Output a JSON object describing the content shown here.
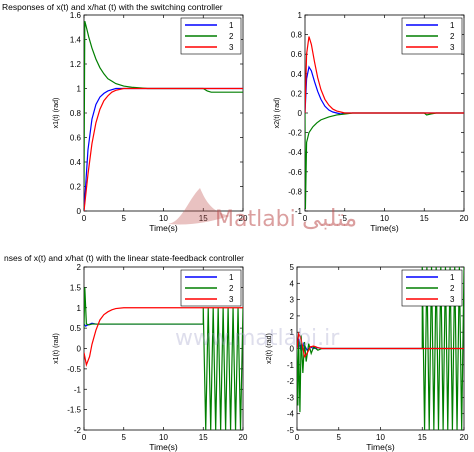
{
  "titles": {
    "top": "Responses of x(t) and x/hat (t) with the switching controller",
    "bottom": "nses of x(t) and x/hat (t) with the linear state-feedback controller"
  },
  "watermark": {
    "brand_latin": "Matlabi",
    "brand_arabic": "متلبی",
    "url": "www.matlabi.ir",
    "color": "#c0504d"
  },
  "colors": {
    "series1": "#0000ff",
    "series2": "#007f00",
    "series3": "#ff0000"
  },
  "chart_data": [
    {
      "type": "line",
      "xlabel": "Time(s)",
      "ylabel": "x1(t) (rad)",
      "xlim": [
        0,
        20
      ],
      "ylim": [
        0,
        1.6
      ],
      "xticks": [
        0,
        5,
        10,
        15,
        20
      ],
      "yticks": [
        0,
        0.2,
        0.4,
        0.6,
        0.8,
        1,
        1.2,
        1.4,
        1.6
      ],
      "legend": "top-right",
      "series": [
        {
          "name": "1",
          "color": "#0000ff",
          "x": [
            0,
            0.5,
            1,
            1.5,
            2,
            2.5,
            3,
            3.5,
            4,
            5,
            6,
            8,
            20
          ],
          "y": [
            0,
            0.5,
            0.75,
            0.87,
            0.93,
            0.96,
            0.98,
            0.99,
            1.0,
            1.0,
            1.0,
            1.0,
            1.0
          ]
        },
        {
          "name": "2",
          "color": "#007f00",
          "x": [
            0,
            0.1,
            0.3,
            0.6,
            1,
            1.5,
            2,
            2.5,
            3,
            3.5,
            4,
            5,
            6,
            8,
            10,
            12,
            14,
            15,
            15.5,
            16,
            20
          ],
          "y": [
            0.2,
            1.55,
            1.5,
            1.42,
            1.33,
            1.24,
            1.17,
            1.12,
            1.08,
            1.06,
            1.04,
            1.02,
            1.01,
            1.0,
            1.0,
            1.0,
            1.0,
            1.0,
            0.98,
            0.97,
            0.97
          ]
        },
        {
          "name": "3",
          "color": "#ff0000",
          "x": [
            0,
            0.5,
            1,
            1.5,
            2,
            2.5,
            3,
            3.5,
            4,
            5,
            6,
            8,
            20
          ],
          "y": [
            0,
            0.3,
            0.55,
            0.72,
            0.83,
            0.9,
            0.94,
            0.97,
            0.985,
            1.0,
            1.0,
            1.0,
            1.0
          ]
        }
      ]
    },
    {
      "type": "line",
      "xlabel": "Time(s)",
      "ylabel": "x2(t) (rad)",
      "xlim": [
        0,
        20
      ],
      "ylim": [
        -1,
        1
      ],
      "xticks": [
        0,
        5,
        10,
        15,
        20
      ],
      "yticks": [
        -1,
        -0.8,
        -0.6,
        -0.4,
        -0.2,
        0,
        0.2,
        0.4,
        0.6,
        0.8,
        1
      ],
      "legend": "top-right",
      "series": [
        {
          "name": "1",
          "color": "#0000ff",
          "x": [
            0,
            0.2,
            0.5,
            0.8,
            1.2,
            1.6,
            2,
            2.5,
            3,
            3.5,
            4,
            4.5,
            5,
            6,
            20
          ],
          "y": [
            0,
            0.35,
            0.47,
            0.43,
            0.32,
            0.22,
            0.14,
            0.07,
            0.03,
            0.01,
            0,
            -0.01,
            0,
            0,
            0
          ]
        },
        {
          "name": "2",
          "color": "#007f00",
          "x": [
            0,
            0.05,
            0.2,
            0.5,
            1,
            1.5,
            2,
            3,
            4,
            5,
            6,
            8,
            15,
            15.3,
            15.8,
            16.5,
            20
          ],
          "y": [
            0,
            -0.98,
            -0.3,
            -0.2,
            -0.14,
            -0.1,
            -0.07,
            -0.04,
            -0.02,
            -0.01,
            0,
            0,
            0,
            -0.02,
            -0.01,
            0,
            0
          ]
        },
        {
          "name": "3",
          "color": "#ff0000",
          "x": [
            0,
            0.2,
            0.5,
            0.8,
            1.2,
            1.6,
            2,
            2.5,
            3,
            3.5,
            4,
            4.5,
            5,
            6,
            20
          ],
          "y": [
            0,
            0.6,
            0.78,
            0.7,
            0.52,
            0.36,
            0.24,
            0.14,
            0.08,
            0.04,
            0.02,
            0.01,
            0,
            0,
            0
          ]
        }
      ]
    },
    {
      "type": "line",
      "xlabel": "Time(s)",
      "ylabel": "x1(t) (rad)",
      "xlim": [
        0,
        20
      ],
      "ylim": [
        -2,
        2
      ],
      "xticks": [
        0,
        5,
        10,
        15,
        20
      ],
      "yticks": [
        -2,
        -1.5,
        -1,
        -0.5,
        0,
        0.5,
        1,
        1.5,
        2
      ],
      "legend": "top-right",
      "oscillation": {
        "series": "2",
        "start": 15,
        "end": 20,
        "low": -2,
        "high": 1,
        "cycles": 8
      },
      "series": [
        {
          "name": "1",
          "color": "#0000ff",
          "x": [
            0,
            0.2,
            0.5,
            1,
            1.5,
            2,
            2.5,
            3,
            15
          ],
          "y": [
            0.6,
            0.55,
            0.58,
            0.62,
            0.6,
            0.6,
            0.6,
            0.6,
            0.6
          ]
        },
        {
          "name": "2",
          "color": "#007f00",
          "x": [
            0,
            0.1,
            0.3,
            0.6,
            1,
            1.5,
            2,
            15
          ],
          "y": [
            0.5,
            1.5,
            0.6,
            0.58,
            0.6,
            0.6,
            0.6,
            0.6
          ]
        },
        {
          "name": "3",
          "color": "#ff0000",
          "x": [
            0,
            0.3,
            0.7,
            1,
            1.5,
            2,
            2.5,
            3,
            3.5,
            4,
            5,
            6,
            8,
            20
          ],
          "y": [
            -0.1,
            -0.4,
            -0.2,
            0.1,
            0.45,
            0.7,
            0.83,
            0.9,
            0.95,
            0.98,
            1.0,
            1.0,
            1.0,
            1.0
          ]
        }
      ]
    },
    {
      "type": "line",
      "xlabel": "Time(s)",
      "ylabel": "x2(t) (rad)",
      "xlim": [
        0,
        20
      ],
      "ylim": [
        -5,
        5
      ],
      "xticks": [
        0,
        5,
        10,
        15,
        20
      ],
      "yticks": [
        -5,
        -4,
        -3,
        -2,
        -1,
        0,
        1,
        2,
        3,
        4,
        5
      ],
      "legend": "top-right",
      "oscillation": {
        "series": "2",
        "start": 15,
        "end": 20,
        "low": -5,
        "high": 5,
        "cycles": 9
      },
      "series": [
        {
          "name": "1",
          "color": "#0000ff",
          "x": [
            0,
            0.2,
            0.5,
            0.8,
            1.2,
            1.6,
            2,
            2.5,
            3,
            4,
            20
          ],
          "y": [
            0,
            0.6,
            -0.2,
            0.3,
            -0.1,
            0.1,
            0,
            0.05,
            0,
            0,
            0
          ]
        },
        {
          "name": "2",
          "color": "#007f00",
          "x": [
            0,
            0.1,
            0.2,
            0.35,
            0.5,
            0.7,
            0.9,
            1.1,
            1.4,
            1.7,
            2,
            2.5,
            3,
            4,
            15
          ],
          "y": [
            0,
            -3.5,
            0.5,
            -3.9,
            0.8,
            -1.5,
            0.4,
            -0.8,
            0.3,
            -0.3,
            0.1,
            -0.1,
            0,
            0,
            0
          ]
        },
        {
          "name": "3",
          "color": "#ff0000",
          "x": [
            0,
            0.2,
            0.4,
            0.6,
            0.9,
            1.2,
            1.6,
            2,
            2.5,
            3,
            4,
            20
          ],
          "y": [
            0,
            0.9,
            0.7,
            0.3,
            -0.5,
            -0.3,
            0.1,
            0.15,
            0.05,
            0,
            0,
            0
          ]
        }
      ]
    }
  ]
}
